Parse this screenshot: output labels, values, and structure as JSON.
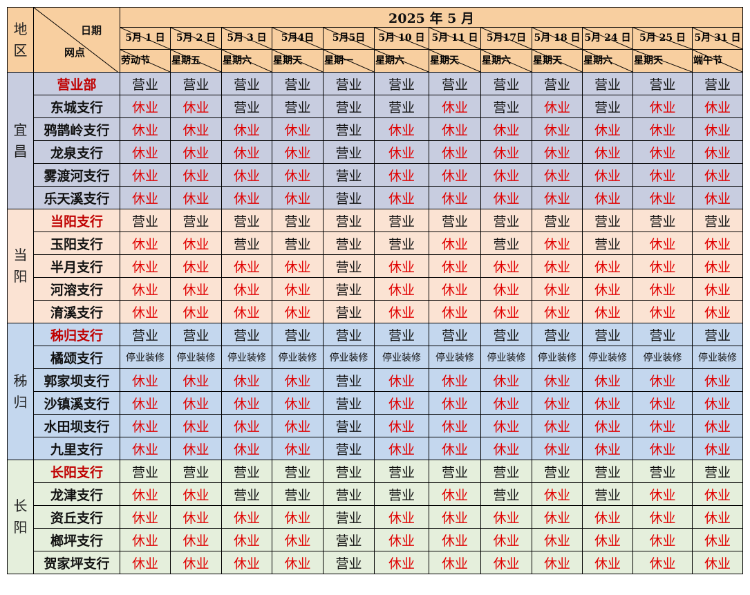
{
  "header": {
    "title": "2025 年 5 月",
    "region_label": [
      "地",
      "区"
    ],
    "corner_date": "日期",
    "corner_branch": "网点"
  },
  "dates": [
    {
      "date": "5月 1 日",
      "label": "劳动节"
    },
    {
      "date": "5月 2 日",
      "label": "星期五"
    },
    {
      "date": "5月 3 日",
      "label": "星期六"
    },
    {
      "date": "5月4日",
      "label": "星期天"
    },
    {
      "date": "5月5日",
      "label": "星期一"
    },
    {
      "date": "5月 10 日",
      "label": "星期六"
    },
    {
      "date": "5月 11 日",
      "label": "星期天"
    },
    {
      "date": "5月17日",
      "label": "星期六"
    },
    {
      "date": "5月 18 日",
      "label": "星期天"
    },
    {
      "date": "5月 24 日",
      "label": "星期六"
    },
    {
      "date": "5月 25 日",
      "label": "星期天"
    },
    {
      "date": "5月 31 日",
      "label": "端午节"
    }
  ],
  "statuses": {
    "open": "营业",
    "closed": "休业",
    "renovation": "停业装修"
  },
  "colors": {
    "header_bg": "#f8cfa0",
    "yichang_bg": "#c8cde0",
    "dangyang_bg": "#fbe3d3",
    "zigui_bg": "#c4d7ee",
    "changyang_bg": "#e5efdc",
    "closed_text": "#e00000",
    "main_branch_text": "#c00000"
  },
  "regions": [
    {
      "name": [
        "宜",
        "昌"
      ],
      "theme": "yichang",
      "branches": [
        {
          "name": "营业部",
          "main": true,
          "s": "OOOOOOOOOOOO"
        },
        {
          "name": "东城支行",
          "main": false,
          "s": "CCOOOOCOCOCC"
        },
        {
          "name": "鸦鹊岭支行",
          "main": false,
          "s": "CCCCOCCCCCCC"
        },
        {
          "name": "龙泉支行",
          "main": false,
          "s": "CCCCOCCCCCCC"
        },
        {
          "name": "雾渡河支行",
          "main": false,
          "s": "CCCCOCCCCCCC"
        },
        {
          "name": "乐天溪支行",
          "main": false,
          "s": "CCCCOCCCCCCC"
        }
      ]
    },
    {
      "name": [
        "当",
        "阳"
      ],
      "theme": "dangyang",
      "branches": [
        {
          "name": "当阳支行",
          "main": true,
          "s": "OOOOOOOOOOOO"
        },
        {
          "name": "玉阳支行",
          "main": false,
          "s": "CCOOOOCOCOCC"
        },
        {
          "name": "半月支行",
          "main": false,
          "s": "CCCCOCCCCCCC"
        },
        {
          "name": "河溶支行",
          "main": false,
          "s": "CCCCOCCCCCCC"
        },
        {
          "name": "淯溪支行",
          "main": false,
          "s": "CCCCOCCCCCCC"
        }
      ]
    },
    {
      "name": [
        "秭",
        "归"
      ],
      "theme": "zigui",
      "branches": [
        {
          "name": "秭归支行",
          "main": true,
          "s": "OOOOOOOOOOOO"
        },
        {
          "name": "橘颂支行",
          "main": false,
          "s": "RRRRRRRRRRRR"
        },
        {
          "name": "郭家坝支行",
          "main": false,
          "s": "CCCCOCCCCCCC"
        },
        {
          "name": "沙镇溪支行",
          "main": false,
          "s": "CCCCOCCCCCCC"
        },
        {
          "name": "水田坝支行",
          "main": false,
          "s": "CCCCOCCCCCCC"
        },
        {
          "name": "九里支行",
          "main": false,
          "s": "CCCCOCCCCCCC"
        }
      ]
    },
    {
      "name": [
        "长",
        "阳"
      ],
      "theme": "changyang",
      "branches": [
        {
          "name": "长阳支行",
          "main": true,
          "s": "OOOOOOOOOOOO"
        },
        {
          "name": "龙津支行",
          "main": false,
          "s": "CCOOOOCOCOCC"
        },
        {
          "name": "资丘支行",
          "main": false,
          "s": "CCCCOCCCCCCC"
        },
        {
          "name": "榔坪支行",
          "main": false,
          "s": "CCCCOCCCCCCC"
        },
        {
          "name": "贺家坪支行",
          "main": false,
          "s": "CCCCOCCCCCCC"
        }
      ]
    }
  ]
}
